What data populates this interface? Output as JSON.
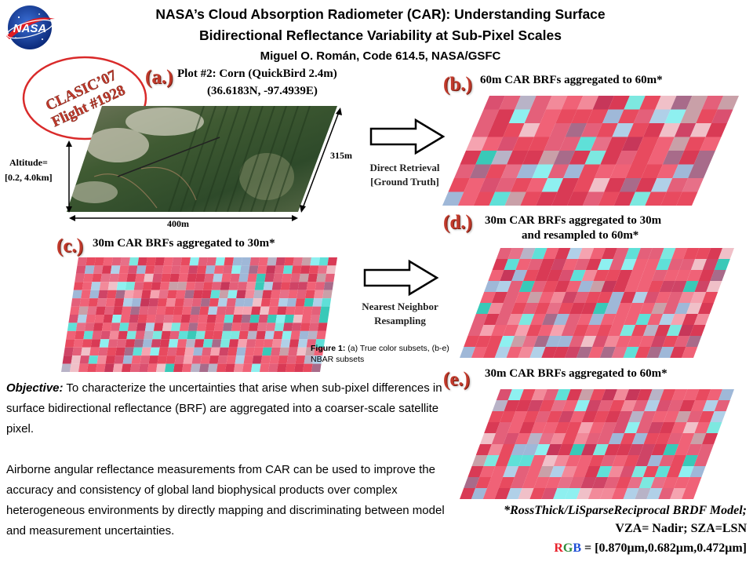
{
  "header": {
    "title_line1": "NASA’s Cloud Absorption Radiometer (CAR): Understanding Surface",
    "title_line2": "Bidirectional Reflectance Variability at Sub-Pixel Scales",
    "author": "Miguel O. Román, Code 614.5, NASA/GSFC",
    "logo_text": "NASA"
  },
  "badge": {
    "line1": "CLASIC’07",
    "line2": "Flight #1928"
  },
  "panel_a": {
    "letter": "(a.)",
    "title_line1": "Plot #2: Corn (QuickBird 2.4m)",
    "title_line2": "(36.6183N, -97.4939E)",
    "altitude_line1": "Altitude=",
    "altitude_line2": "[0.2, 4.0km]",
    "width_label": "400m",
    "depth_label": "315m"
  },
  "panel_b": {
    "letter": "(b.)",
    "caption": "60m CAR BRFs aggregated to 60m*"
  },
  "panel_c": {
    "letter": "(c.)",
    "caption": "30m CAR BRFs aggregated to 30m*"
  },
  "panel_d": {
    "letter": "(d.)",
    "caption_line1": "30m CAR BRFs aggregated to 30m",
    "caption_line2": "and resampled to 60m*"
  },
  "panel_e": {
    "letter": "(e.)",
    "caption": "30m CAR BRFs aggregated to 60m*"
  },
  "arrows": {
    "top_line1": "Direct Retrieval",
    "top_line2": "[Ground Truth]",
    "bottom_line1": "Nearest Neighbor",
    "bottom_line2": "Resampling"
  },
  "figure_caption": {
    "label": "Figure 1:",
    "text": " (a) True color subsets, (b-e) NBAR subsets"
  },
  "objective": {
    "label": "Objective:",
    "text": " To characterize the uncertainties that arise when sub-pixel differences in surface bidirectional reflectance (BRF) are aggregated into a coarser-scale satellite pixel.",
    "paragraph2": "Airborne angular reflectance measurements from CAR  can be used to improve the accuracy and consistency of global land biophysical products over complex heterogeneous environments by directly mapping and discriminating between model and measurement uncertainties."
  },
  "model": {
    "line1": "*RossThick/LiSparseReciprocal BRDF Model;",
    "line2": "VZA= Nadir; SZA=LSN",
    "rgb_r": "R",
    "rgb_g": "G",
    "rgb_b": "B",
    "rgb_rest": " = [0.870μm,0.682μm,0.472μm]",
    "colors": {
      "r": "#e8202a",
      "g": "#2e8b3a",
      "b": "#1f4fd6"
    }
  }
}
